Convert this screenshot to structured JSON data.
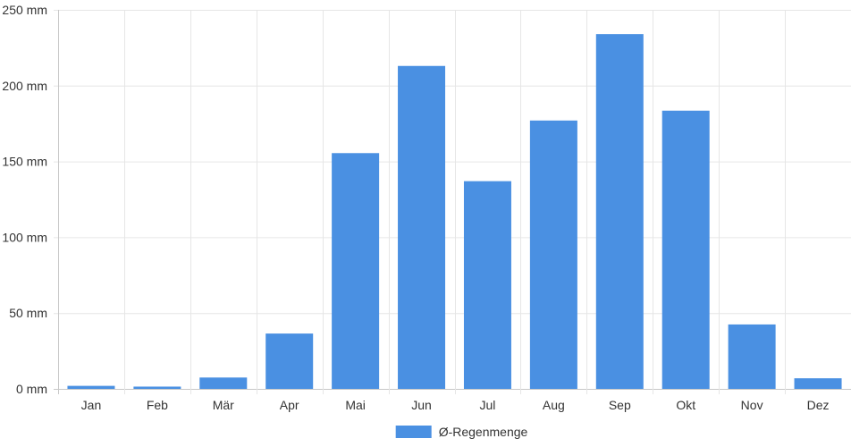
{
  "chart_data": {
    "type": "bar",
    "categories": [
      "Jan",
      "Feb",
      "Mär",
      "Apr",
      "Mai",
      "Jun",
      "Jul",
      "Aug",
      "Sep",
      "Okt",
      "Nov",
      "Dez"
    ],
    "series": [
      {
        "name": "Ø-Regenmenge",
        "color": "#4a90e2",
        "values": [
          2,
          1.5,
          7.5,
          36.5,
          155.5,
          213,
          137,
          177,
          234,
          183.5,
          42.5,
          7
        ]
      }
    ],
    "ylim": [
      0,
      250
    ],
    "yticks": [
      0,
      50,
      100,
      150,
      200,
      250
    ],
    "ytick_labels": [
      "0 mm",
      "50 mm",
      "100 mm",
      "150 mm",
      "200 mm",
      "250 mm"
    ],
    "grid": true,
    "legend_position": "bottom-center"
  }
}
